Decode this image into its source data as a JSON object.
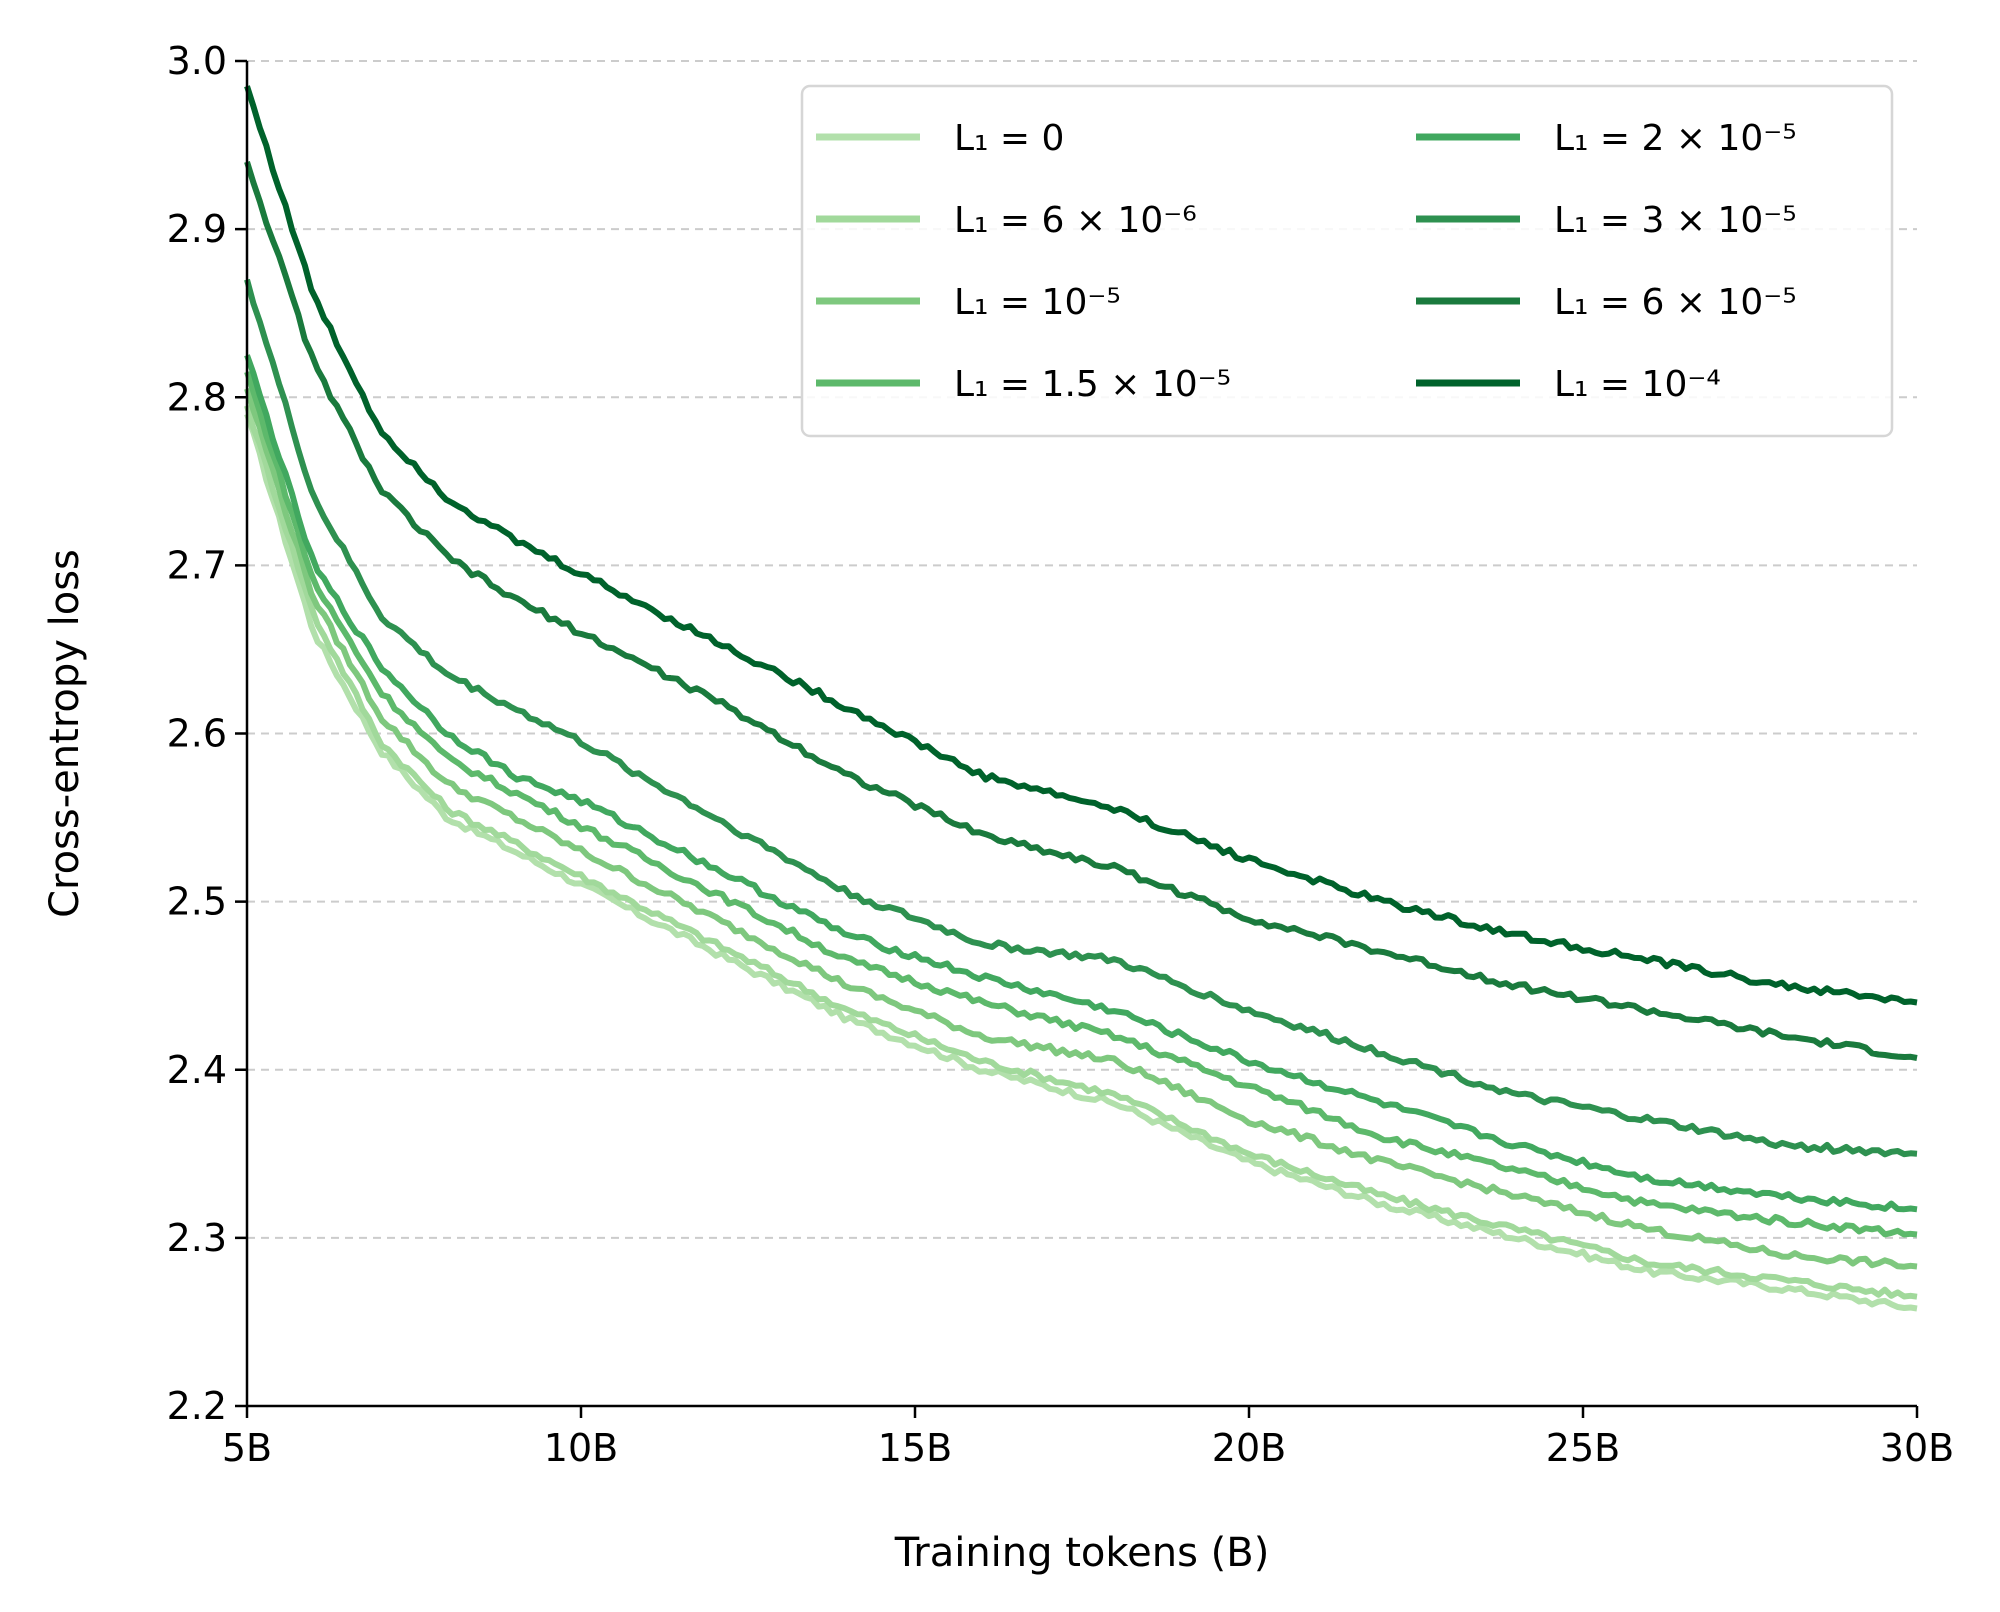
{
  "chart_data": {
    "type": "line",
    "xlabel": "Training tokens (B)",
    "ylabel": "Cross-entropy loss",
    "xlim": [
      5,
      30
    ],
    "ylim": [
      2.2,
      3.0
    ],
    "x_ticks": [
      5,
      10,
      15,
      20,
      25,
      30
    ],
    "x_tick_labels": [
      "5B",
      "10B",
      "15B",
      "20B",
      "25B",
      "30B"
    ],
    "y_ticks": [
      2.2,
      2.3,
      2.4,
      2.5,
      2.6,
      2.7,
      2.8,
      2.9,
      3.0
    ],
    "y_tick_labels": [
      "2.2",
      "2.3",
      "2.4",
      "2.5",
      "2.6",
      "2.7",
      "2.8",
      "2.9",
      "3.0"
    ],
    "grid": "horizontal dashed",
    "legend_position": "top-right",
    "legend_columns": 2,
    "x": [
      5,
      6,
      7,
      8,
      9,
      10,
      12,
      14,
      16,
      18,
      20,
      22,
      24,
      26,
      28,
      30
    ],
    "series": [
      {
        "name": "L1 = 0",
        "legend_label": "L₁ = 0",
        "color": "#b2e0ab",
        "values": [
          2.79,
          2.66,
          2.59,
          2.55,
          2.53,
          2.51,
          2.47,
          2.43,
          2.4,
          2.38,
          2.345,
          2.32,
          2.3,
          2.28,
          2.27,
          2.258
        ]
      },
      {
        "name": "L1 = 6×10^-6",
        "legend_label": "L₁ = 6 × 10⁻⁶",
        "color": "#a1d99b",
        "values": [
          2.795,
          2.67,
          2.595,
          2.555,
          2.535,
          2.515,
          2.475,
          2.435,
          2.405,
          2.385,
          2.35,
          2.325,
          2.305,
          2.285,
          2.275,
          2.265
        ]
      },
      {
        "name": "L1 = 10^-5",
        "legend_label": "L₁ = 10⁻⁵",
        "color": "#7ec87e",
        "values": [
          2.805,
          2.68,
          2.61,
          2.57,
          2.55,
          2.53,
          2.49,
          2.45,
          2.42,
          2.405,
          2.37,
          2.345,
          2.325,
          2.305,
          2.29,
          2.283
        ]
      },
      {
        "name": "L1 = 1.5×10^-5",
        "legend_label": "L₁ = 1.5 × 10⁻⁵",
        "color": "#5db96b",
        "values": [
          2.815,
          2.69,
          2.625,
          2.585,
          2.565,
          2.545,
          2.505,
          2.465,
          2.44,
          2.42,
          2.39,
          2.36,
          2.34,
          2.32,
          2.31,
          2.302
        ]
      },
      {
        "name": "L1 = 2×10^-5",
        "legend_label": "L₁ = 2 × 10⁻⁵",
        "color": "#41a85f",
        "values": [
          2.825,
          2.7,
          2.64,
          2.6,
          2.575,
          2.56,
          2.52,
          2.48,
          2.455,
          2.435,
          2.405,
          2.38,
          2.355,
          2.335,
          2.325,
          2.317
        ]
      },
      {
        "name": "L1 = 3×10^-5",
        "legend_label": "L₁ = 3 × 10⁻⁵",
        "color": "#2e9150",
        "values": [
          2.87,
          2.74,
          2.67,
          2.635,
          2.615,
          2.595,
          2.55,
          2.505,
          2.475,
          2.465,
          2.435,
          2.41,
          2.385,
          2.37,
          2.355,
          2.35
        ]
      },
      {
        "name": "L1 = 6×10^-5",
        "legend_label": "L₁ = 6 × 10⁻⁵",
        "color": "#1a7a3d",
        "values": [
          2.94,
          2.82,
          2.745,
          2.705,
          2.68,
          2.66,
          2.62,
          2.575,
          2.54,
          2.52,
          2.49,
          2.47,
          2.45,
          2.435,
          2.42,
          2.407
        ]
      },
      {
        "name": "L1 = 10^-4",
        "legend_label": "L₁ = 10⁻⁴",
        "color": "#00622b",
        "values": [
          2.985,
          2.86,
          2.78,
          2.74,
          2.715,
          2.695,
          2.655,
          2.615,
          2.575,
          2.555,
          2.525,
          2.5,
          2.48,
          2.465,
          2.45,
          2.44
        ]
      }
    ]
  }
}
